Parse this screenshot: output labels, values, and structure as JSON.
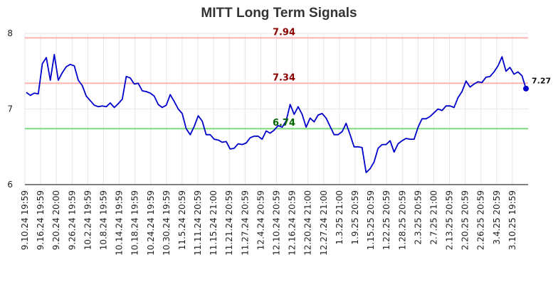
{
  "chart_data": {
    "type": "line",
    "title": "MITT Long Term Signals",
    "xlabel": "",
    "ylabel": "",
    "ylim": [
      6,
      8
    ],
    "y_ticks": [
      "6",
      "7",
      "8"
    ],
    "grid": true,
    "x_tick_labels": [
      "9.10.24 19:59",
      "9.16.24 19:59",
      "9.20.24 20:00",
      "9.26.24 19:59",
      "10.2.24 19:59",
      "10.8.24 19:59",
      "10.14.24 19:59",
      "10.18.24 19:59",
      "10.24.24 19:59",
      "10.30.24 19:59",
      "11.5.24 20:59",
      "11.11.24 20:59",
      "11.15.24 21:00",
      "11.21.24 20:59",
      "11.27.24 20:59",
      "12.4.24 20:59",
      "12.10.24 20:59",
      "12.16.24 20:59",
      "12.20.24 21:00",
      "12.27.24 21:00",
      "1.3.25 21:00",
      "1.9.25 20:59",
      "1.15.25 20:59",
      "1.22.25 20:59",
      "1.28.25 20:59",
      "2.3.25 20:59",
      "2.7.25 21:00",
      "2.13.25 20:59",
      "2.20.25 20:59",
      "2.26.25 20:59",
      "3.4.25 20:59",
      "3.10.25 19:59"
    ],
    "reference_lines": [
      {
        "value": 7.94,
        "label": "7.94",
        "line_color": "#ffb3b3",
        "label_color": "#8b0000"
      },
      {
        "value": 7.34,
        "label": "7.34",
        "line_color": "#ffb3b3",
        "label_color": "#8b0000"
      },
      {
        "value": 6.74,
        "label": "6.74",
        "line_color": "#7ddc7d",
        "label_color": "#006400"
      }
    ],
    "last_value_label": "7.27",
    "line_color": "#0000cc",
    "series": [
      {
        "values": [
          7.22,
          7.18,
          7.21,
          7.2,
          7.6,
          7.68,
          7.38,
          7.72,
          7.38,
          7.48,
          7.56,
          7.59,
          7.57,
          7.38,
          7.31,
          7.17,
          7.11,
          7.05,
          7.03,
          7.04,
          7.03,
          7.08,
          7.02,
          7.07,
          7.13,
          7.43,
          7.41,
          7.33,
          7.34,
          7.24,
          7.23,
          7.21,
          7.17,
          7.06,
          7.02,
          7.05,
          7.19,
          7.1,
          7.0,
          6.94,
          6.74,
          6.66,
          6.77,
          6.91,
          6.84,
          6.66,
          6.66,
          6.6,
          6.59,
          6.56,
          6.57,
          6.47,
          6.48,
          6.54,
          6.53,
          6.55,
          6.62,
          6.64,
          6.64,
          6.6,
          6.71,
          6.68,
          6.72,
          6.78,
          6.76,
          6.84,
          7.06,
          6.93,
          7.03,
          6.93,
          6.76,
          6.88,
          6.83,
          6.92,
          6.94,
          6.88,
          6.77,
          6.66,
          6.66,
          6.7,
          6.81,
          6.66,
          6.5,
          6.5,
          6.49,
          6.16,
          6.21,
          6.3,
          6.48,
          6.53,
          6.53,
          6.58,
          6.43,
          6.54,
          6.58,
          6.61,
          6.6,
          6.6,
          6.76,
          6.87,
          6.87,
          6.9,
          6.95,
          7.0,
          6.98,
          7.04,
          7.04,
          7.02,
          7.15,
          7.23,
          7.37,
          7.29,
          7.33,
          7.36,
          7.35,
          7.42,
          7.43,
          7.49,
          7.57,
          7.69,
          7.5,
          7.55,
          7.46,
          7.49,
          7.44,
          7.27
        ]
      }
    ]
  }
}
